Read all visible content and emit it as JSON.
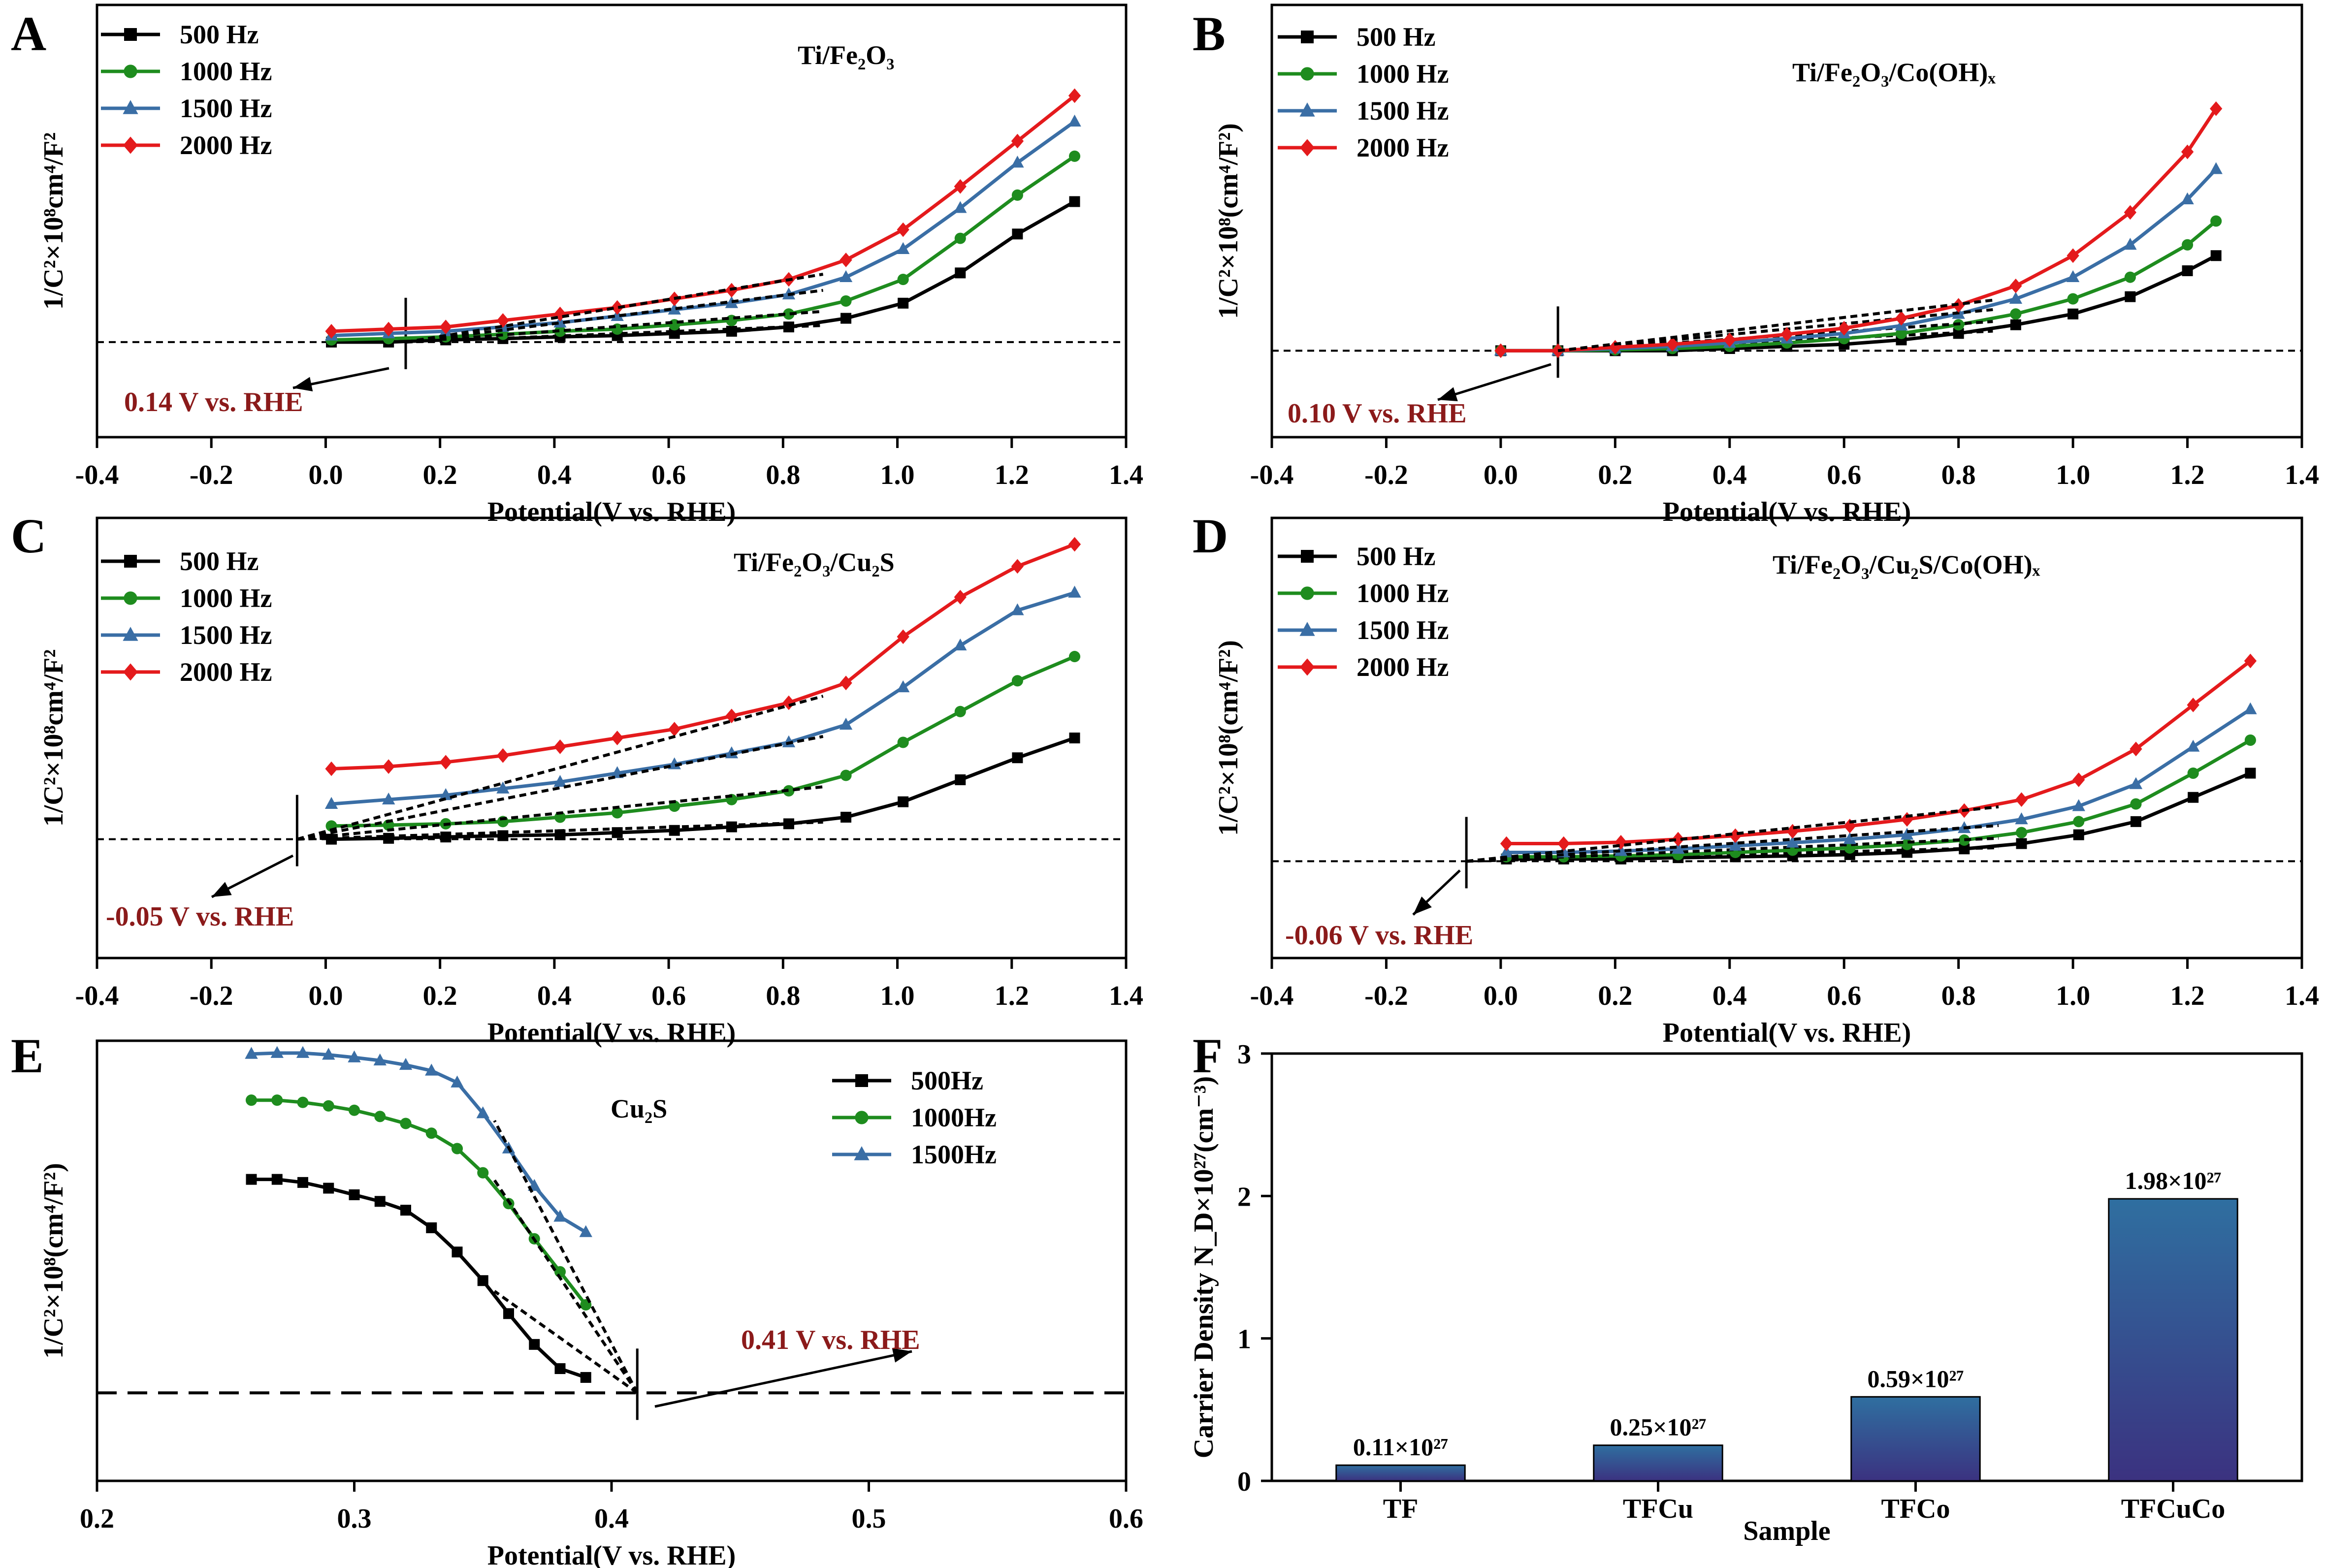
{
  "colors": {
    "black": "#000000",
    "green": "#1e8c1e",
    "blue": "#3a6ea5",
    "red": "#e41a1c",
    "annot": "#8b1a1a"
  },
  "chart_data": [
    {
      "panel": "A",
      "type": "line",
      "title": "Ti/Fe₂O₃",
      "xlabel": "Potential(V vs. RHE)",
      "ylabel": "1/C²×10⁸cm⁴/F²",
      "xlim": [
        -0.4,
        1.4
      ],
      "ylim": [
        0,
        1
      ],
      "xticks": [
        -0.4,
        -0.2,
        0.0,
        0.2,
        0.4,
        0.6,
        0.8,
        1.0,
        1.2,
        1.4
      ],
      "yticks": [],
      "x": [
        0.01,
        0.11,
        0.21,
        0.31,
        0.41,
        0.51,
        0.61,
        0.71,
        0.81,
        0.91,
        1.01,
        1.11,
        1.21,
        1.31
      ],
      "series": [
        {
          "name": "500 Hz",
          "marker": "square",
          "values": [
            0.22,
            0.22,
            0.225,
            0.228,
            0.232,
            0.235,
            0.24,
            0.245,
            0.255,
            0.275,
            0.31,
            0.38,
            0.47,
            0.545
          ]
        },
        {
          "name": "1000 Hz",
          "marker": "circle",
          "values": [
            0.225,
            0.228,
            0.232,
            0.238,
            0.245,
            0.25,
            0.26,
            0.27,
            0.285,
            0.315,
            0.365,
            0.46,
            0.56,
            0.65
          ]
        },
        {
          "name": "1500 Hz",
          "marker": "triangle",
          "values": [
            0.235,
            0.24,
            0.245,
            0.255,
            0.265,
            0.28,
            0.295,
            0.31,
            0.33,
            0.37,
            0.435,
            0.53,
            0.635,
            0.73
          ]
        },
        {
          "name": "2000 Hz",
          "marker": "diamond",
          "values": [
            0.245,
            0.25,
            0.255,
            0.27,
            0.285,
            0.3,
            0.32,
            0.34,
            0.365,
            0.41,
            0.48,
            0.58,
            0.685,
            0.79
          ]
        }
      ],
      "baseline": 0.22,
      "intercept": "0.14 V vs. RHE",
      "intercept_x": 0.14,
      "legend": "top-left"
    },
    {
      "panel": "B",
      "type": "line",
      "title": "Ti/Fe₂O₃/Co(OH)ₓ",
      "xlabel": "Potential(V vs. RHE)",
      "ylabel": "1/C²×10⁸(cm⁴/F²)",
      "xlim": [
        -0.4,
        1.4
      ],
      "ylim": [
        0,
        1
      ],
      "xticks": [
        -0.4,
        -0.2,
        0.0,
        0.2,
        0.4,
        0.6,
        0.8,
        1.0,
        1.2,
        1.4
      ],
      "yticks": [],
      "x": [
        0.0,
        0.1,
        0.2,
        0.3,
        0.4,
        0.5,
        0.6,
        0.7,
        0.8,
        0.9,
        1.0,
        1.1,
        1.2,
        1.25
      ],
      "series": [
        {
          "name": "500 Hz",
          "marker": "square",
          "values": [
            0.2,
            0.2,
            0.2,
            0.2,
            0.205,
            0.21,
            0.215,
            0.225,
            0.24,
            0.26,
            0.285,
            0.325,
            0.385,
            0.42
          ]
        },
        {
          "name": "1000 Hz",
          "marker": "circle",
          "values": [
            0.2,
            0.2,
            0.202,
            0.205,
            0.21,
            0.218,
            0.228,
            0.24,
            0.26,
            0.285,
            0.32,
            0.37,
            0.445,
            0.5
          ]
        },
        {
          "name": "1500 Hz",
          "marker": "triangle",
          "values": [
            0.2,
            0.2,
            0.205,
            0.21,
            0.218,
            0.228,
            0.24,
            0.258,
            0.285,
            0.32,
            0.37,
            0.445,
            0.55,
            0.62
          ]
        },
        {
          "name": "2000 Hz",
          "marker": "diamond",
          "values": [
            0.2,
            0.2,
            0.208,
            0.215,
            0.225,
            0.238,
            0.252,
            0.275,
            0.305,
            0.35,
            0.42,
            0.52,
            0.66,
            0.76
          ]
        }
      ],
      "baseline": 0.2,
      "intercept": "0.10 V vs. RHE",
      "intercept_x": 0.1,
      "legend": "top-left"
    },
    {
      "panel": "C",
      "type": "line",
      "title": "Ti/Fe₂O₃/Cu₂S",
      "xlabel": "Potential(V vs. RHE)",
      "ylabel": "1/C²×10⁸cm⁴/F²",
      "xlim": [
        -0.4,
        1.4
      ],
      "ylim": [
        0,
        1
      ],
      "xticks": [
        -0.4,
        -0.2,
        0.0,
        0.2,
        0.4,
        0.6,
        0.8,
        1.0,
        1.2,
        1.4
      ],
      "yticks": [],
      "x": [
        0.01,
        0.11,
        0.21,
        0.31,
        0.41,
        0.51,
        0.61,
        0.71,
        0.81,
        0.91,
        1.01,
        1.11,
        1.21,
        1.31
      ],
      "series": [
        {
          "name": "500 Hz",
          "marker": "square",
          "values": [
            0.27,
            0.272,
            0.275,
            0.278,
            0.28,
            0.285,
            0.29,
            0.298,
            0.305,
            0.32,
            0.355,
            0.405,
            0.455,
            0.5
          ]
        },
        {
          "name": "1000 Hz",
          "marker": "circle",
          "values": [
            0.3,
            0.302,
            0.305,
            0.31,
            0.32,
            0.33,
            0.345,
            0.36,
            0.38,
            0.415,
            0.49,
            0.56,
            0.63,
            0.685
          ]
        },
        {
          "name": "1500 Hz",
          "marker": "triangle",
          "values": [
            0.35,
            0.36,
            0.37,
            0.385,
            0.4,
            0.42,
            0.44,
            0.465,
            0.49,
            0.53,
            0.615,
            0.71,
            0.79,
            0.83
          ]
        },
        {
          "name": "2000 Hz",
          "marker": "diamond",
          "values": [
            0.43,
            0.435,
            0.445,
            0.46,
            0.48,
            0.5,
            0.52,
            0.55,
            0.58,
            0.625,
            0.73,
            0.82,
            0.89,
            0.94
          ]
        }
      ],
      "baseline": 0.27,
      "intercept": "-0.05 V vs. RHE",
      "intercept_x": -0.05,
      "legend": "top-left"
    },
    {
      "panel": "D",
      "type": "line",
      "title": "Ti/Fe₂O₃/Cu₂S/Co(OH)ₓ",
      "xlabel": "Potential(V vs. RHE)",
      "ylabel": "1/C²×10⁸(cm⁴/F²)",
      "xlim": [
        -0.4,
        1.4
      ],
      "ylim": [
        0,
        1
      ],
      "xticks": [
        -0.4,
        -0.2,
        0.0,
        0.2,
        0.4,
        0.6,
        0.8,
        1.0,
        1.2,
        1.4
      ],
      "yticks": [],
      "x": [
        0.01,
        0.11,
        0.21,
        0.31,
        0.41,
        0.51,
        0.61,
        0.71,
        0.81,
        0.91,
        1.01,
        1.11,
        1.21,
        1.31
      ],
      "series": [
        {
          "name": "500 Hz",
          "marker": "square",
          "values": [
            0.225,
            0.225,
            0.225,
            0.228,
            0.23,
            0.232,
            0.235,
            0.24,
            0.248,
            0.26,
            0.28,
            0.31,
            0.365,
            0.42
          ]
        },
        {
          "name": "1000 Hz",
          "marker": "circle",
          "values": [
            0.23,
            0.23,
            0.232,
            0.235,
            0.24,
            0.245,
            0.25,
            0.258,
            0.268,
            0.285,
            0.31,
            0.35,
            0.42,
            0.495
          ]
        },
        {
          "name": "1500 Hz",
          "marker": "triangle",
          "values": [
            0.24,
            0.24,
            0.243,
            0.248,
            0.255,
            0.262,
            0.27,
            0.28,
            0.295,
            0.315,
            0.345,
            0.395,
            0.48,
            0.565
          ]
        },
        {
          "name": "2000 Hz",
          "marker": "diamond",
          "values": [
            0.26,
            0.26,
            0.263,
            0.27,
            0.278,
            0.288,
            0.3,
            0.315,
            0.335,
            0.36,
            0.405,
            0.475,
            0.575,
            0.675
          ]
        }
      ],
      "baseline": 0.22,
      "intercept": "-0.06 V vs. RHE",
      "intercept_x": -0.06,
      "legend": "top-left"
    },
    {
      "panel": "E",
      "type": "line",
      "title": "Cu₂S",
      "xlabel": "Potential(V vs. RHE)",
      "ylabel": "1/C²×10⁸(cm⁴/F²)",
      "xlim": [
        0.2,
        0.6
      ],
      "ylim": [
        0,
        1
      ],
      "xticks": [
        0.2,
        0.3,
        0.4,
        0.5,
        0.6
      ],
      "yticks": [],
      "series": [
        {
          "name": "500Hz",
          "marker": "square",
          "x": [
            0.26,
            0.27,
            0.28,
            0.29,
            0.3,
            0.31,
            0.32,
            0.33,
            0.34,
            0.35,
            0.36,
            0.37,
            0.38,
            0.39
          ],
          "values": [
            0.685,
            0.685,
            0.678,
            0.665,
            0.65,
            0.635,
            0.615,
            0.575,
            0.52,
            0.455,
            0.38,
            0.31,
            0.255,
            0.235
          ]
        },
        {
          "name": "1000Hz",
          "marker": "circle",
          "x": [
            0.26,
            0.27,
            0.28,
            0.29,
            0.3,
            0.31,
            0.32,
            0.33,
            0.34,
            0.35,
            0.36,
            0.37,
            0.38,
            0.39
          ],
          "values": [
            0.865,
            0.865,
            0.86,
            0.852,
            0.842,
            0.828,
            0.812,
            0.79,
            0.755,
            0.7,
            0.63,
            0.55,
            0.475,
            0.4
          ]
        },
        {
          "name": "1500Hz",
          "marker": "triangle",
          "x": [
            0.26,
            0.27,
            0.28,
            0.29,
            0.3,
            0.31,
            0.32,
            0.33,
            0.34,
            0.35,
            0.36,
            0.37,
            0.38,
            0.39
          ],
          "values": [
            0.97,
            0.972,
            0.972,
            0.968,
            0.962,
            0.955,
            0.945,
            0.932,
            0.905,
            0.835,
            0.755,
            0.67,
            0.6,
            0.565
          ]
        }
      ],
      "baseline": 0.2,
      "intercept": "0.41 V vs. RHE",
      "intercept_x": 0.41,
      "legend": "top-right"
    },
    {
      "panel": "F",
      "type": "bar",
      "xlabel": "Sample",
      "ylabel": "Carrier Density N_D×10²⁷(cm⁻³)",
      "categories": [
        "TF",
        "TFCu",
        "TFCo",
        "TFCuCo"
      ],
      "values": [
        0.11,
        0.25,
        0.59,
        1.98
      ],
      "data_labels": [
        "0.11×10²⁷",
        "0.25×10²⁷",
        "0.59×10²⁷",
        "1.98×10²⁷"
      ],
      "ylim": [
        0,
        3
      ],
      "yticks": [
        0,
        1,
        2,
        3
      ]
    }
  ]
}
